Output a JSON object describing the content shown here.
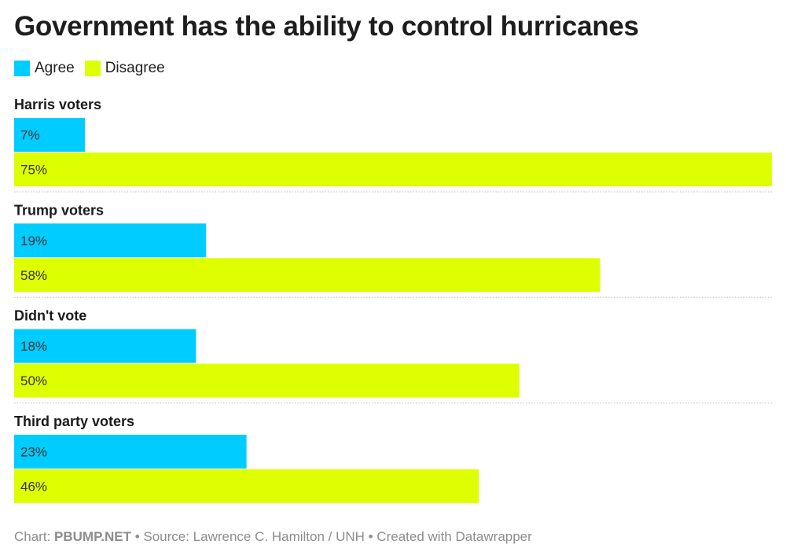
{
  "chart_data": {
    "type": "bar",
    "orientation": "horizontal",
    "title": "Government has the ability to control hurricanes",
    "categories": [
      "Harris voters",
      "Trump voters",
      "Didn't vote",
      "Third party voters"
    ],
    "series": [
      {
        "name": "Agree",
        "color": "#00ccff",
        "values": [
          7,
          19,
          18,
          23
        ],
        "labels": [
          "7%",
          "19%",
          "18%",
          "23%"
        ]
      },
      {
        "name": "Disagree",
        "color": "#ddff00",
        "values": [
          75,
          58,
          50,
          46
        ],
        "labels": [
          "75%",
          "58%",
          "50%",
          "46%"
        ]
      }
    ],
    "xlim": [
      0,
      75
    ],
    "legend": "top-left",
    "grid": false
  },
  "footer": {
    "prefix": "Chart: ",
    "brand": "PBUMP.NET",
    "rest": " • Source: Lawrence C. Hamilton / UNH • Created with Datawrapper"
  }
}
